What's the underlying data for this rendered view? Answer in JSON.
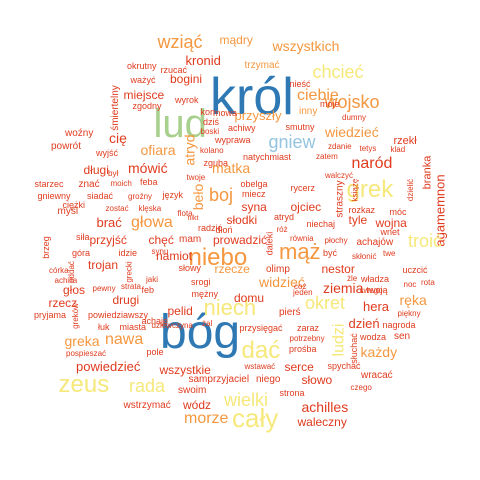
{
  "palette": {
    "red": "#e03b1e",
    "orange": "#f5973f",
    "yellow": "#f6e87a",
    "green": "#a8d08d",
    "blue": "#2e78b4",
    "light_blue": "#94c4df",
    "deep_red": "#c8382f"
  },
  "words": [
    {
      "text": "król",
      "color": "blue"
    },
    {
      "text": "bóg",
      "color": "blue"
    },
    {
      "text": "lud",
      "color": "green"
    },
    {
      "text": "niebo",
      "color": "orange"
    },
    {
      "text": "niech",
      "color": "yellow"
    },
    {
      "text": "grek",
      "color": "yellow"
    },
    {
      "text": "zeus",
      "color": "yellow"
    },
    {
      "text": "cały",
      "color": "yellow"
    },
    {
      "text": "dać",
      "color": "yellow"
    },
    {
      "text": "wziąć",
      "color": "orange"
    },
    {
      "text": "mądry",
      "color": "orange"
    },
    {
      "text": "wszystkich",
      "color": "orange"
    },
    {
      "text": "chcieć",
      "color": "yellow"
    },
    {
      "text": "wojsko",
      "color": "orange"
    },
    {
      "text": "ciebie",
      "color": "orange"
    },
    {
      "text": "gniew",
      "color": "light_blue"
    },
    {
      "text": "wiedzieć",
      "color": "orange"
    },
    {
      "text": "naród",
      "color": "red"
    },
    {
      "text": "trzymać",
      "color": "orange"
    },
    {
      "text": "kronid",
      "color": "red"
    },
    {
      "text": "bogini",
      "color": "red"
    },
    {
      "text": "okrutny",
      "color": "red"
    },
    {
      "text": "rzucać",
      "color": "red"
    },
    {
      "text": "nieść",
      "color": "red"
    },
    {
      "text": "ważyć",
      "color": "red"
    },
    {
      "text": "miejsce",
      "color": "red"
    },
    {
      "text": "zgodny",
      "color": "red"
    },
    {
      "text": "wyrok",
      "color": "red"
    },
    {
      "text": "śmiertelny",
      "color": "red"
    },
    {
      "text": "przyszły",
      "color": "orange"
    },
    {
      "text": "moje",
      "color": "red"
    },
    {
      "text": "inny",
      "color": "orange"
    },
    {
      "text": "dumny",
      "color": "red"
    },
    {
      "text": "kon",
      "color": "red"
    },
    {
      "text": "mowa",
      "color": "red"
    },
    {
      "text": "dziś",
      "color": "red"
    },
    {
      "text": "boski",
      "color": "red"
    },
    {
      "text": "achiwy",
      "color": "red"
    },
    {
      "text": "smutny",
      "color": "red"
    },
    {
      "text": "wyprawa",
      "color": "red"
    },
    {
      "text": "kolano",
      "color": "red"
    },
    {
      "text": "woźny",
      "color": "red"
    },
    {
      "text": "powrót",
      "color": "red"
    },
    {
      "text": "cię",
      "color": "red"
    },
    {
      "text": "wyjść",
      "color": "red"
    },
    {
      "text": "ofiara",
      "color": "orange"
    },
    {
      "text": "atryd",
      "color": "orange"
    },
    {
      "text": "mówić",
      "color": "red"
    },
    {
      "text": "zguba",
      "color": "red"
    },
    {
      "text": "natychmiast",
      "color": "red"
    },
    {
      "text": "zatem",
      "color": "red"
    },
    {
      "text": "zdanie",
      "color": "red"
    },
    {
      "text": "tetys",
      "color": "red"
    },
    {
      "text": "rzekł",
      "color": "red"
    },
    {
      "text": "klad",
      "color": "red"
    },
    {
      "text": "branka",
      "color": "red"
    },
    {
      "text": "agamemnon",
      "color": "red"
    },
    {
      "text": "długi",
      "color": "red"
    },
    {
      "text": "był",
      "color": "red"
    },
    {
      "text": "znać",
      "color": "red"
    },
    {
      "text": "moich",
      "color": "red"
    },
    {
      "text": "feba",
      "color": "red"
    },
    {
      "text": "twoje",
      "color": "red"
    },
    {
      "text": "walczyć",
      "color": "red"
    },
    {
      "text": "matka",
      "color": "orange"
    },
    {
      "text": "obelga",
      "color": "red"
    },
    {
      "text": "rycerz",
      "color": "red"
    },
    {
      "text": "straszny",
      "color": "red"
    },
    {
      "text": "książę",
      "color": "red"
    },
    {
      "text": "dzielić",
      "color": "red"
    },
    {
      "text": "starzec",
      "color": "red"
    },
    {
      "text": "gniewny",
      "color": "red"
    },
    {
      "text": "siadać",
      "color": "red"
    },
    {
      "text": "ciężki",
      "color": "red"
    },
    {
      "text": "zostać",
      "color": "red"
    },
    {
      "text": "klęska",
      "color": "red"
    },
    {
      "text": "groźny",
      "color": "red"
    },
    {
      "text": "język",
      "color": "red"
    },
    {
      "text": "beło",
      "color": "orange"
    },
    {
      "text": "boj",
      "color": "orange"
    },
    {
      "text": "syna",
      "color": "red"
    },
    {
      "text": "ojciec",
      "color": "red"
    },
    {
      "text": "miecz",
      "color": "red"
    },
    {
      "text": "tyle",
      "color": "red"
    },
    {
      "text": "rozkaz",
      "color": "red"
    },
    {
      "text": "móc",
      "color": "red"
    },
    {
      "text": "myśl",
      "color": "red"
    },
    {
      "text": "brać",
      "color": "red"
    },
    {
      "text": "głowa",
      "color": "orange"
    },
    {
      "text": "flota",
      "color": "red"
    },
    {
      "text": "słodki",
      "color": "red"
    },
    {
      "text": "atryd",
      "color": "red"
    },
    {
      "text": "niechaj",
      "color": "red"
    },
    {
      "text": "wojna",
      "color": "red"
    },
    {
      "text": "wnet",
      "color": "red"
    },
    {
      "text": "brzeg",
      "color": "red"
    },
    {
      "text": "siła",
      "color": "red"
    },
    {
      "text": "przyjść",
      "color": "red"
    },
    {
      "text": "chęć",
      "color": "red"
    },
    {
      "text": "mam",
      "color": "red"
    },
    {
      "text": "nikt",
      "color": "red"
    },
    {
      "text": "radzić",
      "color": "red"
    },
    {
      "text": "dłoń",
      "color": "red"
    },
    {
      "text": "prowadzić",
      "color": "red"
    },
    {
      "text": "daleki",
      "color": "red"
    },
    {
      "text": "równia",
      "color": "red"
    },
    {
      "text": "płochy",
      "color": "red"
    },
    {
      "text": "achajów",
      "color": "red"
    },
    {
      "text": "troić",
      "color": "yellow"
    },
    {
      "text": "góra",
      "color": "red"
    },
    {
      "text": "idzie",
      "color": "red"
    },
    {
      "text": "synu",
      "color": "red"
    },
    {
      "text": "mąż",
      "color": "orange"
    },
    {
      "text": "być",
      "color": "red"
    },
    {
      "text": "skłonić",
      "color": "red"
    },
    {
      "text": "twe",
      "color": "red"
    },
    {
      "text": "córka",
      "color": "red"
    },
    {
      "text": "achilla",
      "color": "red"
    },
    {
      "text": "jaki",
      "color": "red"
    },
    {
      "text": "trojan",
      "color": "red"
    },
    {
      "text": "namiot",
      "color": "red"
    },
    {
      "text": "rzecze",
      "color": "orange"
    },
    {
      "text": "widzieć",
      "color": "orange"
    },
    {
      "text": "nestor",
      "color": "red"
    },
    {
      "text": "żle",
      "color": "red"
    },
    {
      "text": "władza",
      "color": "red"
    },
    {
      "text": "uczcić",
      "color": "red"
    },
    {
      "text": "noc",
      "color": "red"
    },
    {
      "text": "rota",
      "color": "red"
    },
    {
      "text": "głos",
      "color": "red"
    },
    {
      "text": "pewny",
      "color": "red"
    },
    {
      "text": "feb",
      "color": "red"
    },
    {
      "text": "słowy",
      "color": "red"
    },
    {
      "text": "olimp",
      "color": "red"
    },
    {
      "text": "ziemia",
      "color": "red"
    },
    {
      "text": "okret",
      "color": "yellow"
    },
    {
      "text": "ręka",
      "color": "orange"
    },
    {
      "text": "rzecz",
      "color": "red"
    },
    {
      "text": "drugi",
      "color": "red"
    },
    {
      "text": "srogi",
      "color": "red"
    },
    {
      "text": "domu",
      "color": "red"
    },
    {
      "text": "hera",
      "color": "red"
    },
    {
      "text": "pryjama",
      "color": "red"
    },
    {
      "text": "powiedziawszy",
      "color": "red"
    },
    {
      "text": "pelid",
      "color": "red"
    },
    {
      "text": "mężny",
      "color": "red"
    },
    {
      "text": "pierś",
      "color": "red"
    },
    {
      "text": "jeden",
      "color": "red"
    },
    {
      "text": "swego",
      "color": "red"
    },
    {
      "text": "twoją",
      "color": "red"
    },
    {
      "text": "łuk",
      "color": "red"
    },
    {
      "text": "miasta",
      "color": "red"
    },
    {
      "text": "dziewczyna",
      "color": "red"
    },
    {
      "text": "żal",
      "color": "red"
    },
    {
      "text": "dzień",
      "color": "red"
    },
    {
      "text": "nagroda",
      "color": "red"
    },
    {
      "text": "greka",
      "color": "orange"
    },
    {
      "text": "nawa",
      "color": "orange"
    },
    {
      "text": "przysięgać",
      "color": "red"
    },
    {
      "text": "zaraz",
      "color": "red"
    },
    {
      "text": "potrzebny",
      "color": "red"
    },
    {
      "text": "prośba",
      "color": "red"
    },
    {
      "text": "ludzi",
      "color": "yellow"
    },
    {
      "text": "wodza",
      "color": "red"
    },
    {
      "text": "każdy",
      "color": "orange"
    },
    {
      "text": "sen",
      "color": "red"
    },
    {
      "text": "pospieszać",
      "color": "red"
    },
    {
      "text": "powiedzieć",
      "color": "red"
    },
    {
      "text": "pole",
      "color": "red"
    },
    {
      "text": "serce",
      "color": "red"
    },
    {
      "text": "spychać",
      "color": "red"
    },
    {
      "text": "słuchać",
      "color": "red"
    },
    {
      "text": "rada",
      "color": "yellow"
    },
    {
      "text": "wszystkie",
      "color": "red"
    },
    {
      "text": "wstawać",
      "color": "red"
    },
    {
      "text": "słowo",
      "color": "red"
    },
    {
      "text": "wracać",
      "color": "red"
    },
    {
      "text": "czego",
      "color": "red"
    },
    {
      "text": "samprzyjaciel",
      "color": "red"
    },
    {
      "text": "niego",
      "color": "red"
    },
    {
      "text": "swoim",
      "color": "red"
    },
    {
      "text": "strona",
      "color": "red"
    },
    {
      "text": "wielki",
      "color": "yellow"
    },
    {
      "text": "wstrzymać",
      "color": "red"
    },
    {
      "text": "wódz",
      "color": "red"
    },
    {
      "text": "achilles",
      "color": "red"
    },
    {
      "text": "morze",
      "color": "orange"
    },
    {
      "text": "waleczny",
      "color": "red"
    },
    {
      "text": "achaje",
      "color": "red"
    },
    {
      "text": "grecki",
      "color": "red"
    },
    {
      "text": "oddać",
      "color": "red"
    },
    {
      "text": "greków",
      "color": "red"
    },
    {
      "text": "strata",
      "color": "red"
    },
    {
      "text": "piękny",
      "color": "red"
    },
    {
      "text": "róż",
      "color": "red"
    },
    {
      "text": "coż",
      "color": "red"
    }
  ]
}
